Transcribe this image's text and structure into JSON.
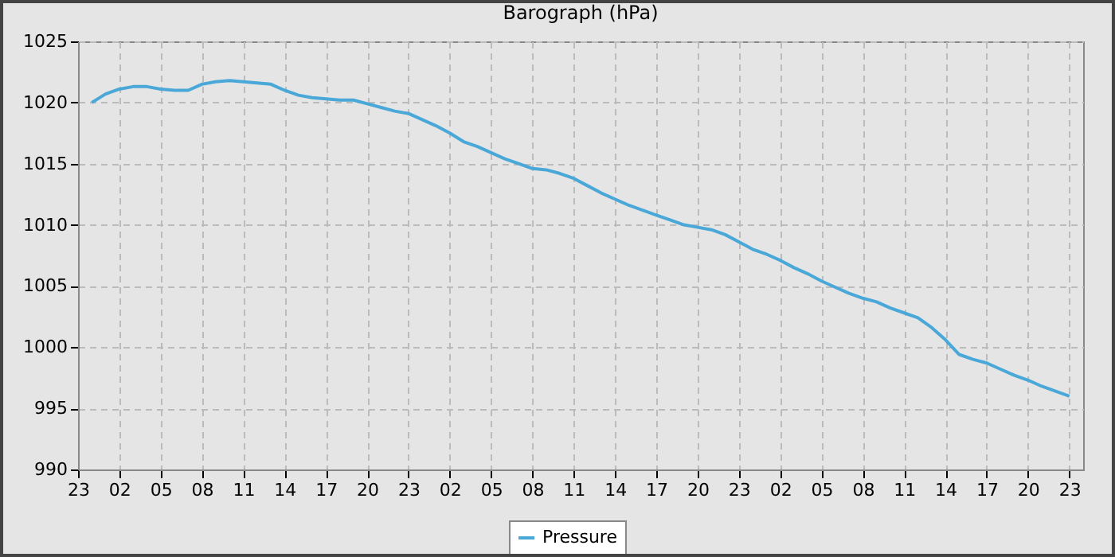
{
  "chart_data": {
    "type": "line",
    "title": "Barograph (hPa)",
    "categories": [
      "23",
      null,
      null,
      "02",
      null,
      null,
      "05",
      null,
      null,
      "08",
      null,
      null,
      "11",
      null,
      null,
      "14",
      null,
      null,
      "17",
      null,
      null,
      "20",
      null,
      null,
      "23",
      null,
      null,
      "02",
      null,
      null,
      "05",
      null,
      null,
      "08",
      null,
      null,
      "11",
      null,
      null,
      "14",
      null,
      null,
      "17",
      null,
      null,
      "20",
      null,
      null,
      "23",
      null,
      null,
      "02",
      null,
      null,
      "05",
      null,
      null,
      "08",
      null,
      null,
      "11",
      null,
      null,
      "14",
      null,
      null,
      "17",
      null,
      null,
      "20",
      null,
      null,
      "23",
      null
    ],
    "ylim": [
      990,
      1025
    ],
    "yticks": [
      990,
      995,
      1000,
      1005,
      1010,
      1015,
      1020,
      1025
    ],
    "series": [
      {
        "name": "Pressure",
        "color": "#4aa8d8",
        "values": [
          null,
          1020.0,
          1020.7,
          1021.1,
          1021.3,
          1021.3,
          1021.1,
          1021.0,
          1021.0,
          1021.5,
          1021.7,
          1021.8,
          1021.7,
          1021.6,
          1021.5,
          1021.0,
          1020.6,
          1020.4,
          1020.3,
          1020.2,
          1020.2,
          1019.9,
          1019.6,
          1019.3,
          1019.1,
          1018.6,
          1018.1,
          1017.5,
          1016.8,
          1016.4,
          1015.9,
          1015.4,
          1015.0,
          1014.6,
          1014.5,
          1014.2,
          1013.8,
          1013.2,
          1012.6,
          1012.1,
          1011.6,
          1011.2,
          1010.8,
          1010.4,
          1010.0,
          1009.8,
          1009.6,
          1009.2,
          1008.6,
          1008.0,
          1007.6,
          1007.1,
          1006.5,
          1006.0,
          1005.4,
          1004.9,
          1004.4,
          1004.0,
          1003.7,
          1003.2,
          1002.8,
          1002.4,
          1001.6,
          1000.6,
          999.4,
          999.0,
          998.7,
          998.2,
          997.7,
          997.3,
          996.8,
          996.4,
          996.0,
          null
        ]
      }
    ],
    "grid": true,
    "legend": "bottom",
    "marker": "none",
    "line_style": "solid"
  }
}
